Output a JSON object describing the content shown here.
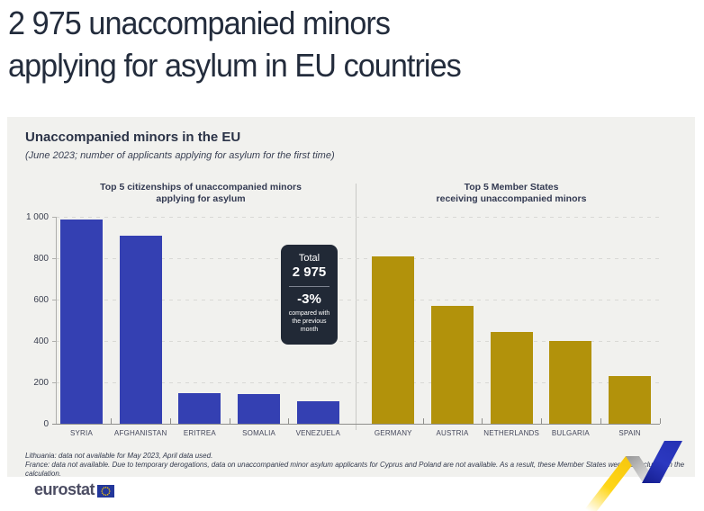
{
  "page_title": {
    "line1": "2 975 unaccompanied minors",
    "line2": "applying for asylum in EU countries"
  },
  "panel": {
    "title": "Unaccompanied minors in the EU",
    "subtitle": "(June 2023; number of applicants applying for asylum for the first time)",
    "footnotes": [
      "Lithuania: data not available for May 2023, April data used.",
      "France: data not available. Due to temporary derogations, data on unaccompanied minor asylum applicants for Cyprus and Poland are not available.  As a result, these Member States were not included in the calculation."
    ]
  },
  "badge": {
    "label": "Total",
    "total": "2 975",
    "change": "-3%",
    "change_note": "compared with the previous month"
  },
  "chart_data": {
    "type": "bar",
    "title": "Unaccompanied minors in the EU",
    "subtitle": "(June 2023; number of applicants applying for asylum for the first time)",
    "ylim": [
      0,
      1000
    ],
    "grid": "dashed horizontal, legend none",
    "yticks": [
      {
        "label": "1 000",
        "value": 1000
      },
      {
        "label": "800",
        "value": 800
      },
      {
        "label": "600",
        "value": 600
      },
      {
        "label": "400",
        "value": 400
      },
      {
        "label": "200",
        "value": 200
      },
      {
        "label": "0",
        "value": 0
      }
    ],
    "groups": [
      {
        "title_lines": [
          "Top 5 citizenships of unaccompanied minors",
          "applying for asylum"
        ],
        "color": "#3440b2",
        "categories": [
          "SYRIA",
          "AFGHANISTAN",
          "ERITREA",
          "SOMALIA",
          "VENEZUELA"
        ],
        "values": [
          985,
          910,
          150,
          145,
          110
        ]
      },
      {
        "title_lines": [
          "Top 5 Member States",
          "receiving unaccompanied minors"
        ],
        "color": "#b2920b",
        "categories": [
          "GERMANY",
          "AUSTRIA",
          "NETHERLANDS",
          "BULGARIA",
          "SPAIN"
        ],
        "values": [
          810,
          570,
          445,
          400,
          230
        ]
      }
    ]
  },
  "footer": {
    "logo_text": "eurostat"
  },
  "colors": {
    "title_text": "#232c3c",
    "panel_bg": "#f1f1ee",
    "badge_bg": "#212936",
    "bar_blue": "#3440b2",
    "bar_gold": "#b2920b",
    "ribbon_yellow": "#ffd617",
    "ribbon_blue": "#2b38c0",
    "eu_flag_blue": "#23379b",
    "eu_flag_stars": "#ffcc00"
  }
}
